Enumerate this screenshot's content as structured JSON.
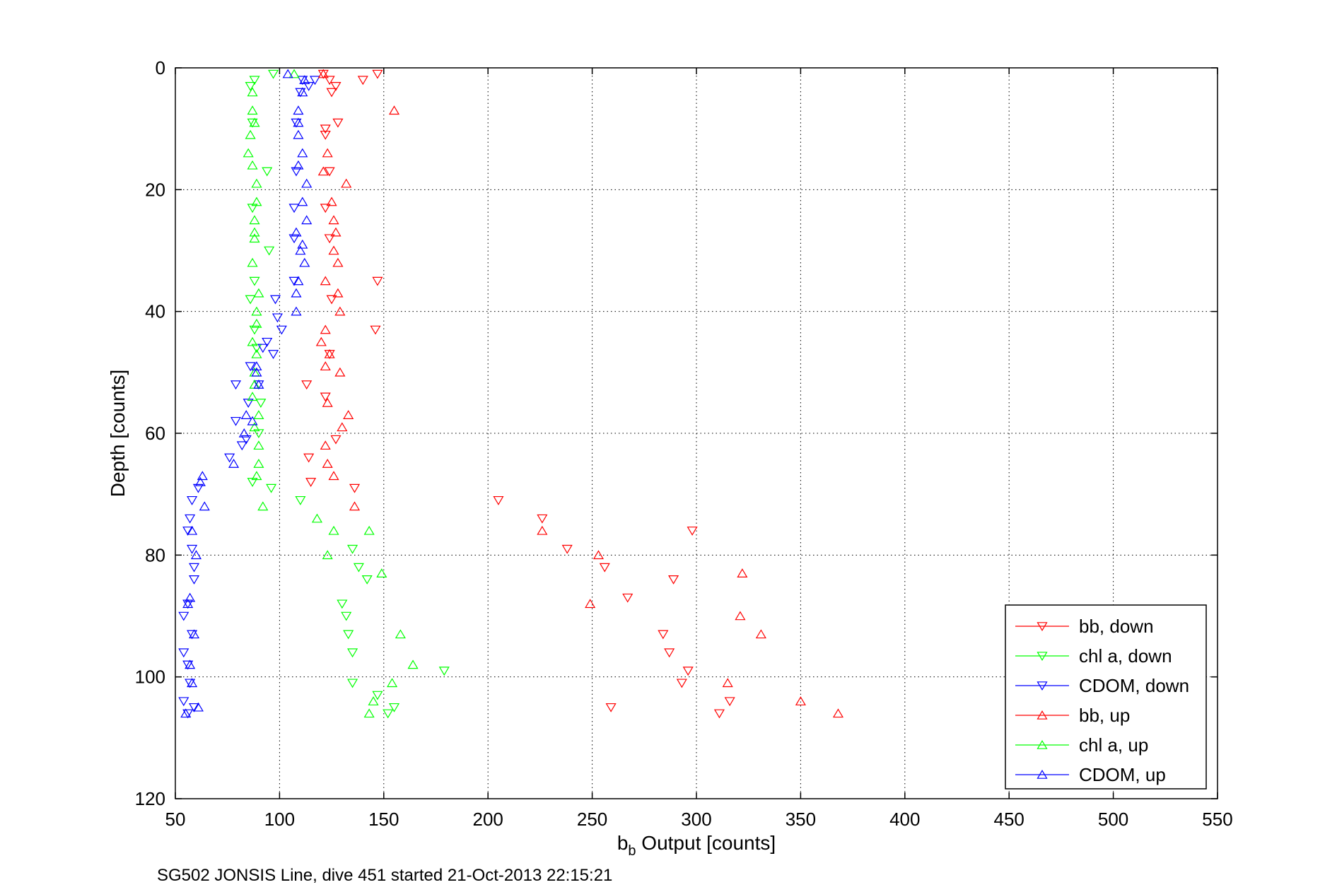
{
  "chart_data": {
    "type": "scatter",
    "xlabel_base": "b",
    "xlabel_sub": "b",
    "xlabel_rest": " Output [counts]",
    "ylabel": "Depth [counts]",
    "xlim": [
      50,
      550
    ],
    "ylim": [
      0,
      120
    ],
    "y_reversed": true,
    "grid": true,
    "x_ticks": [
      50,
      100,
      150,
      200,
      250,
      300,
      350,
      400,
      450,
      500,
      550
    ],
    "y_ticks": [
      0,
      20,
      40,
      60,
      80,
      100,
      120
    ],
    "legend_position": "bottom-right",
    "series": [
      {
        "name": "bb, down",
        "color": "#ff0000",
        "marker": "triangle-down",
        "points": [
          [
            121,
            1
          ],
          [
            124,
            2
          ],
          [
            127,
            3
          ],
          [
            140,
            2
          ],
          [
            147,
            1
          ],
          [
            125,
            4
          ],
          [
            128,
            9
          ],
          [
            122,
            10
          ],
          [
            122,
            11
          ],
          [
            124,
            17
          ],
          [
            122,
            23
          ],
          [
            124,
            28
          ],
          [
            147,
            35
          ],
          [
            125,
            38
          ],
          [
            146,
            43
          ],
          [
            124,
            47
          ],
          [
            113,
            52
          ],
          [
            122,
            54
          ],
          [
            127,
            61
          ],
          [
            114,
            64
          ],
          [
            115,
            68
          ],
          [
            136,
            69
          ],
          [
            205,
            71
          ],
          [
            226,
            74
          ],
          [
            238,
            79
          ],
          [
            256,
            82
          ],
          [
            289,
            84
          ],
          [
            298,
            76
          ],
          [
            267,
            87
          ],
          [
            284,
            93
          ],
          [
            287,
            96
          ],
          [
            296,
            99
          ],
          [
            293,
            101
          ],
          [
            259,
            105
          ],
          [
            311,
            106
          ],
          [
            316,
            104
          ]
        ]
      },
      {
        "name": "chl a, down",
        "color": "#00ff00",
        "marker": "triangle-down",
        "points": [
          [
            86,
            3
          ],
          [
            88,
            2
          ],
          [
            97,
            1
          ],
          [
            87,
            9
          ],
          [
            94,
            17
          ],
          [
            87,
            23
          ],
          [
            95,
            30
          ],
          [
            88,
            35
          ],
          [
            86,
            38
          ],
          [
            88,
            43
          ],
          [
            89,
            46
          ],
          [
            91,
            55
          ],
          [
            90,
            60
          ],
          [
            87,
            68
          ],
          [
            96,
            69
          ],
          [
            110,
            71
          ],
          [
            135,
            79
          ],
          [
            138,
            82
          ],
          [
            142,
            84
          ],
          [
            130,
            88
          ],
          [
            132,
            90
          ],
          [
            133,
            93
          ],
          [
            135,
            96
          ],
          [
            179,
            99
          ],
          [
            155,
            105
          ],
          [
            152,
            106
          ],
          [
            135,
            101
          ],
          [
            147,
            103
          ]
        ]
      },
      {
        "name": "CDOM, down",
        "color": "#0000ff",
        "marker": "triangle-down",
        "points": [
          [
            111,
            2
          ],
          [
            114,
            3
          ],
          [
            117,
            2
          ],
          [
            110,
            4
          ],
          [
            108,
            9
          ],
          [
            108,
            17
          ],
          [
            107,
            23
          ],
          [
            107,
            28
          ],
          [
            107,
            35
          ],
          [
            98,
            38
          ],
          [
            99,
            41
          ],
          [
            101,
            43
          ],
          [
            94,
            45
          ],
          [
            92,
            46
          ],
          [
            97,
            47
          ],
          [
            86,
            49
          ],
          [
            79,
            52
          ],
          [
            90,
            52
          ],
          [
            85,
            55
          ],
          [
            79,
            58
          ],
          [
            84,
            61
          ],
          [
            82,
            62
          ],
          [
            76,
            64
          ],
          [
            61,
            69
          ],
          [
            58,
            71
          ],
          [
            57,
            74
          ],
          [
            56,
            76
          ],
          [
            58,
            79
          ],
          [
            59,
            82
          ],
          [
            59,
            84
          ],
          [
            56,
            88
          ],
          [
            54,
            90
          ],
          [
            58,
            93
          ],
          [
            54,
            96
          ],
          [
            56,
            98
          ],
          [
            57,
            101
          ],
          [
            54,
            104
          ],
          [
            56,
            106
          ],
          [
            59,
            105
          ]
        ]
      },
      {
        "name": "bb, up",
        "color": "#ff0000",
        "marker": "triangle-up",
        "points": [
          [
            121,
            1
          ],
          [
            155,
            7
          ],
          [
            123,
            14
          ],
          [
            121,
            17
          ],
          [
            132,
            19
          ],
          [
            125,
            22
          ],
          [
            126,
            25
          ],
          [
            127,
            27
          ],
          [
            126,
            30
          ],
          [
            128,
            32
          ],
          [
            122,
            35
          ],
          [
            128,
            37
          ],
          [
            129,
            40
          ],
          [
            122,
            43
          ],
          [
            120,
            45
          ],
          [
            124,
            47
          ],
          [
            129,
            50
          ],
          [
            122,
            49
          ],
          [
            123,
            55
          ],
          [
            133,
            57
          ],
          [
            130,
            59
          ],
          [
            122,
            62
          ],
          [
            123,
            65
          ],
          [
            126,
            67
          ],
          [
            136,
            72
          ],
          [
            226,
            76
          ],
          [
            253,
            80
          ],
          [
            249,
            88
          ],
          [
            322,
            83
          ],
          [
            321,
            90
          ],
          [
            331,
            93
          ],
          [
            315,
            101
          ],
          [
            350,
            104
          ],
          [
            368,
            106
          ]
        ]
      },
      {
        "name": "chl a, up",
        "color": "#00ff00",
        "marker": "triangle-up",
        "points": [
          [
            107,
            1
          ],
          [
            87,
            4
          ],
          [
            87,
            7
          ],
          [
            88,
            9
          ],
          [
            86,
            11
          ],
          [
            85,
            14
          ],
          [
            87,
            16
          ],
          [
            89,
            19
          ],
          [
            89,
            22
          ],
          [
            88,
            25
          ],
          [
            88,
            27
          ],
          [
            88,
            28
          ],
          [
            87,
            32
          ],
          [
            90,
            37
          ],
          [
            89,
            40
          ],
          [
            89,
            42
          ],
          [
            87,
            45
          ],
          [
            89,
            47
          ],
          [
            88,
            50
          ],
          [
            88,
            52
          ],
          [
            87,
            54
          ],
          [
            90,
            57
          ],
          [
            88,
            59
          ],
          [
            90,
            62
          ],
          [
            90,
            65
          ],
          [
            89,
            67
          ],
          [
            92,
            72
          ],
          [
            118,
            74
          ],
          [
            126,
            76
          ],
          [
            143,
            76
          ],
          [
            123,
            80
          ],
          [
            149,
            83
          ],
          [
            158,
            93
          ],
          [
            164,
            98
          ],
          [
            154,
            101
          ],
          [
            145,
            104
          ],
          [
            143,
            106
          ]
        ]
      },
      {
        "name": "CDOM, up",
        "color": "#0000ff",
        "marker": "triangle-up",
        "points": [
          [
            104,
            1
          ],
          [
            112,
            2
          ],
          [
            111,
            4
          ],
          [
            109,
            7
          ],
          [
            109,
            9
          ],
          [
            109,
            11
          ],
          [
            111,
            14
          ],
          [
            109,
            16
          ],
          [
            113,
            19
          ],
          [
            111,
            22
          ],
          [
            113,
            25
          ],
          [
            108,
            27
          ],
          [
            111,
            29
          ],
          [
            110,
            30
          ],
          [
            112,
            32
          ],
          [
            109,
            35
          ],
          [
            108,
            37
          ],
          [
            108,
            40
          ],
          [
            89,
            50
          ],
          [
            90,
            52
          ],
          [
            87,
            58
          ],
          [
            89,
            49
          ],
          [
            84,
            57
          ],
          [
            83,
            60
          ],
          [
            78,
            65
          ],
          [
            63,
            67
          ],
          [
            64,
            72
          ],
          [
            62,
            68
          ],
          [
            58,
            76
          ],
          [
            60,
            80
          ],
          [
            57,
            87
          ],
          [
            56,
            88
          ],
          [
            59,
            93
          ],
          [
            57,
            98
          ],
          [
            58,
            101
          ],
          [
            61,
            105
          ],
          [
            55,
            106
          ]
        ]
      }
    ]
  },
  "footer": "SG502 JONSIS Line, dive 451 started 21-Oct-2013 22:15:21"
}
